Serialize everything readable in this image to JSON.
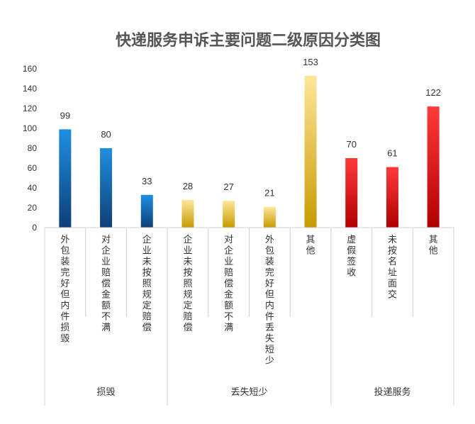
{
  "chart_data": {
    "type": "bar",
    "title": "快递服务申诉主要问题二级原因分类图",
    "ylim": [
      0,
      160
    ],
    "yticks": [
      0,
      20,
      40,
      60,
      80,
      100,
      120,
      140,
      160
    ],
    "grid": false,
    "legend": "none",
    "categories": [
      "外包装完好但内件损毁",
      "对企业赔偿金额不满",
      "企业未按照规定赔偿",
      "企业未按照规定赔偿",
      "对企业赔偿金额不满",
      "外包装完好但内件丢失短少",
      "其他",
      "虚假签收",
      "未按名址面交",
      "其他"
    ],
    "values": [
      99,
      80,
      33,
      28,
      27,
      21,
      153,
      70,
      61,
      122
    ],
    "groups": [
      {
        "label": "损毁",
        "start": 0,
        "count": 3,
        "color_top": "#1f8fe0",
        "color_bottom": "#0d3f78"
      },
      {
        "label": "丢失短少",
        "start": 3,
        "count": 4,
        "color_top": "#ffe79a",
        "color_bottom": "#c79a00"
      },
      {
        "label": "投递服务",
        "start": 7,
        "count": 3,
        "color_top": "#ff3a3a",
        "color_bottom": "#b00000"
      }
    ],
    "colors": {
      "axis": "#d0d0d0",
      "tick_text": "#333333",
      "title": "#555555"
    }
  }
}
